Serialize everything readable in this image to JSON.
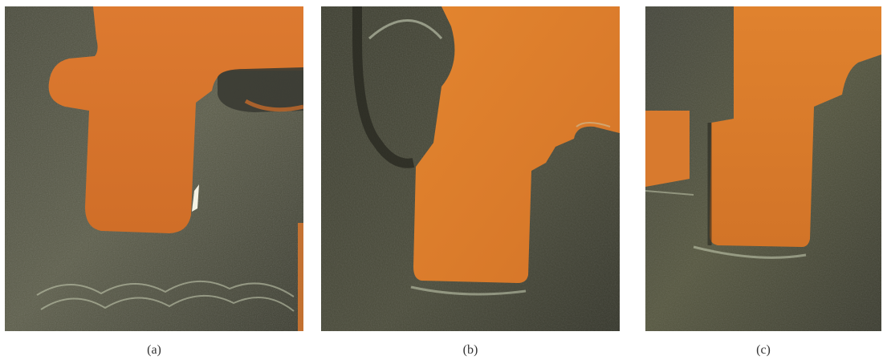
{
  "figure": {
    "panels": [
      {
        "id": "a",
        "caption": "(a)"
      },
      {
        "id": "b",
        "caption": "(b)"
      },
      {
        "id": "c",
        "caption": "(c)"
      }
    ]
  },
  "colors": {
    "substrate": "#d9772f",
    "metal_dark": "#3d3e32",
    "metal_mid": "#5a5b48",
    "highlight": "#c9cfb4"
  }
}
